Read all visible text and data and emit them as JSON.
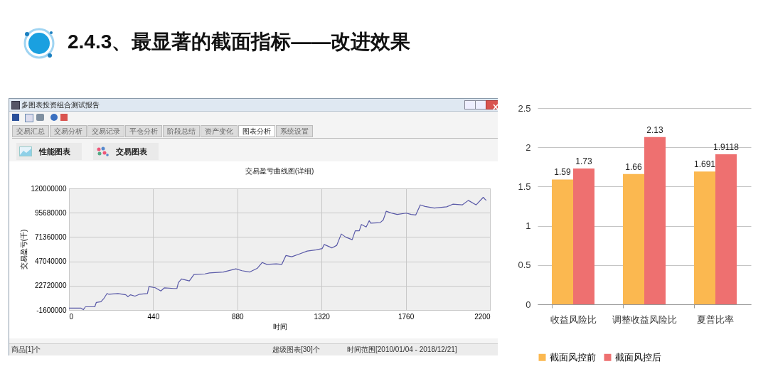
{
  "chart_data": [
    {
      "type": "other",
      "title": "2.4.3、最显著的截面指标——改进效果"
    },
    {
      "type": "line",
      "title": "交易盈亏曲线图(详细)",
      "xlabel": "时间",
      "ylabel": "交易盈亏(千)",
      "annotations": [
        "多图表投资组合测试报告",
        "交易汇总",
        "交易分析",
        "交易记录",
        "平仓分析",
        "阶段总结",
        "资产变化",
        "图表分析",
        "系统设置",
        "性能图表",
        "交易图表",
        "商品[1]个",
        "超级图表[30]个",
        "时间范围[2010/01/04 - 2018/12/21]"
      ],
      "x": [
        0,
        62,
        75,
        86,
        135,
        143,
        167,
        183,
        199,
        207,
        256,
        297,
        308,
        321,
        345,
        370,
        410,
        418,
        451,
        480,
        499,
        548,
        564,
        572,
        588,
        629,
        653,
        710,
        734,
        807,
        872,
        904,
        945,
        985,
        1010,
        1034,
        1083,
        1112,
        1134,
        1164,
        1204,
        1245,
        1293,
        1323,
        1334,
        1374,
        1399,
        1423,
        1447,
        1480,
        1496,
        1517,
        1528,
        1553,
        1569,
        1577,
        1626,
        1642,
        1658,
        1682,
        1715,
        1763,
        1788,
        1812,
        1836,
        1861,
        1909,
        1974,
        2006,
        2055,
        2087,
        2128,
        2165,
        2177,
        2182
      ],
      "series": [
        {
          "color": "#5a5aa8",
          "values": [
            300000.0,
            300000.0,
            -1300000.0,
            1600000.0,
            1600000.0,
            6000000.0,
            6600000.0,
            10100000.0,
            14900000.0,
            14200000.0,
            14900000.0,
            13600000.0,
            11700000.0,
            13600000.0,
            12300000.0,
            14200000.0,
            14900000.0,
            21800000.0,
            20600000.0,
            17400000.0,
            20600000.0,
            19900000.0,
            19900000.0,
            25900000.0,
            29400000.0,
            27500000.0,
            33900000.0,
            34500000.0,
            35500000.0,
            36400000.0,
            39600000.0,
            37700000.0,
            36400000.0,
            40200000.0,
            45900000.0,
            44000000.0,
            44600000.0,
            44000000.0,
            52900000.0,
            51600000.0,
            54400000.0,
            57300000.0,
            58600000.0,
            59800000.0,
            63900000.0,
            60500000.0,
            63000000.0,
            74400000.0,
            71200000.0,
            68700000.0,
            77600000.0,
            77600000.0,
            83900000.0,
            81400000.0,
            87700000.0,
            85200000.0,
            85800000.0,
            88300000.0,
            97200000.0,
            95600000.0,
            94000000.0,
            95300000.0,
            94000000.0,
            93400000.0,
            103500000.0,
            102000000.0,
            100400000.0,
            101600000.0,
            104200000.0,
            103500000.0,
            108000000.0,
            103500000.0,
            111100000.0,
            108600000.0,
            108300000.0
          ]
        }
      ],
      "xlim": [
        0,
        2200
      ],
      "xticks": [
        0,
        440,
        880,
        1320,
        1760,
        2200
      ],
      "ylim": [
        -1600000,
        120000000
      ],
      "yticks": [
        -1600000,
        22720000,
        47040000,
        71360000,
        95680000,
        120000000
      ],
      "grid": true
    },
    {
      "type": "bar",
      "categories": [
        "收益风险比",
        "调整收益风险比",
        "夏普比率"
      ],
      "series": [
        {
          "name": "截面风控前",
          "color": "#fbb850",
          "values": [
            1.59,
            1.66,
            1.691
          ]
        },
        {
          "name": "截面风控后",
          "color": "#ee7070",
          "values": [
            1.73,
            2.13,
            1.9118
          ]
        }
      ],
      "ylim": [
        0,
        2.5
      ],
      "yticks": [
        0,
        0.5,
        1,
        1.5,
        2,
        2.5
      ],
      "grid": "y",
      "data_labels": true,
      "legend": "bottom"
    }
  ]
}
